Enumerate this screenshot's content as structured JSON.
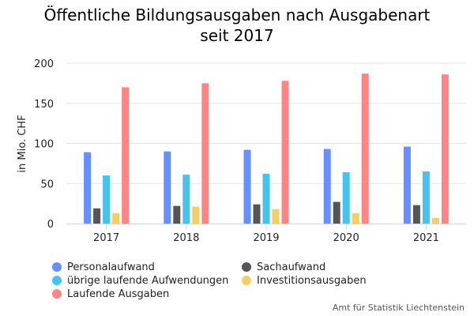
{
  "chart_data": {
    "type": "bar",
    "title": "Öffentliche Bildungsausgaben nach Ausgabenart seit 2017",
    "title_lines": [
      "Öffentliche Bildungsausgaben nach Ausgabenart",
      "seit 2017"
    ],
    "xlabel": "",
    "ylabel": "in Mio. CHF",
    "ylim": [
      0,
      200
    ],
    "yticks": [
      0,
      50,
      100,
      150,
      200
    ],
    "grid": true,
    "legend_position": "bottom-left",
    "categories": [
      "2017",
      "2018",
      "2019",
      "2020",
      "2021"
    ],
    "series": [
      {
        "name": "Personalaufwand",
        "color": "#6690ff",
        "values": [
          89,
          90,
          92,
          93,
          96
        ]
      },
      {
        "name": "Sachaufwand",
        "color": "#555555",
        "values": [
          19,
          22,
          24,
          27,
          23
        ]
      },
      {
        "name": "übrige laufende Aufwendungen",
        "color": "#45c3f0",
        "values": [
          60,
          61,
          62,
          64,
          65
        ]
      },
      {
        "name": "Investitionsausgaben",
        "color": "#f5cf65",
        "values": [
          13,
          21,
          18,
          13,
          7
        ]
      },
      {
        "name": "Laufende Ausgaben",
        "color": "#ff8585",
        "values": [
          170,
          175,
          178,
          187,
          186
        ]
      }
    ],
    "source": "Amt für Statistik Liechtenstein"
  },
  "legend_order": [
    0,
    2,
    4,
    1,
    3
  ]
}
